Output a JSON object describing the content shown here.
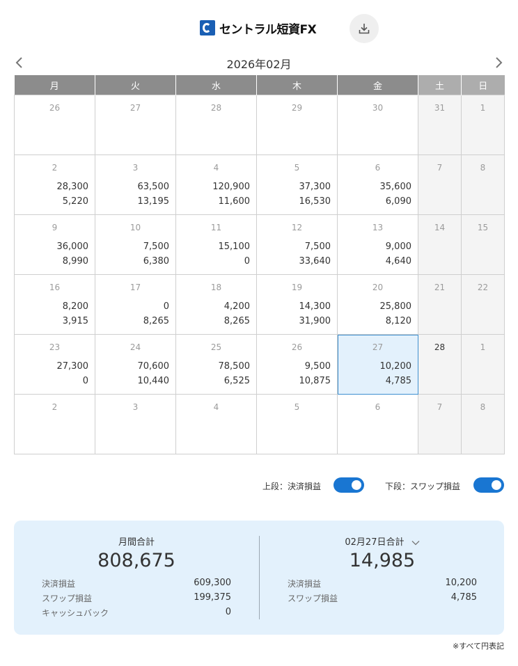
{
  "header": {
    "logo_text": "セントラル短資FX",
    "download_icon": "download-icon"
  },
  "nav": {
    "month_label": "2026年02月",
    "prev_icon": "chevron-left-icon",
    "next_icon": "chevron-right-icon"
  },
  "weekdays": [
    "月",
    "火",
    "水",
    "木",
    "金",
    "土",
    "日"
  ],
  "weeks": [
    [
      {
        "day": "26",
        "a": "",
        "b": ""
      },
      {
        "day": "27",
        "a": "",
        "b": ""
      },
      {
        "day": "28",
        "a": "",
        "b": ""
      },
      {
        "day": "29",
        "a": "",
        "b": ""
      },
      {
        "day": "30",
        "a": "",
        "b": ""
      },
      {
        "day": "31",
        "a": "",
        "b": ""
      },
      {
        "day": "1",
        "a": "",
        "b": ""
      }
    ],
    [
      {
        "day": "2",
        "a": "28,300",
        "b": "5,220"
      },
      {
        "day": "3",
        "a": "63,500",
        "b": "13,195"
      },
      {
        "day": "4",
        "a": "120,900",
        "b": "11,600"
      },
      {
        "day": "5",
        "a": "37,300",
        "b": "16,530"
      },
      {
        "day": "6",
        "a": "35,600",
        "b": "6,090"
      },
      {
        "day": "7",
        "a": "",
        "b": ""
      },
      {
        "day": "8",
        "a": "",
        "b": ""
      }
    ],
    [
      {
        "day": "9",
        "a": "36,000",
        "b": "8,990"
      },
      {
        "day": "10",
        "a": "7,500",
        "b": "6,380"
      },
      {
        "day": "11",
        "a": "15,100",
        "b": "0"
      },
      {
        "day": "12",
        "a": "7,500",
        "b": "33,640"
      },
      {
        "day": "13",
        "a": "9,000",
        "b": "4,640"
      },
      {
        "day": "14",
        "a": "",
        "b": ""
      },
      {
        "day": "15",
        "a": "",
        "b": ""
      }
    ],
    [
      {
        "day": "16",
        "a": "8,200",
        "b": "3,915"
      },
      {
        "day": "17",
        "a": "0",
        "b": "8,265"
      },
      {
        "day": "18",
        "a": "4,200",
        "b": "8,265"
      },
      {
        "day": "19",
        "a": "14,300",
        "b": "31,900"
      },
      {
        "day": "20",
        "a": "25,800",
        "b": "8,120"
      },
      {
        "day": "21",
        "a": "",
        "b": ""
      },
      {
        "day": "22",
        "a": "",
        "b": ""
      }
    ],
    [
      {
        "day": "23",
        "a": "27,300",
        "b": "0"
      },
      {
        "day": "24",
        "a": "70,600",
        "b": "10,440"
      },
      {
        "day": "25",
        "a": "78,500",
        "b": "6,525"
      },
      {
        "day": "26",
        "a": "9,500",
        "b": "10,875"
      },
      {
        "day": "27",
        "a": "10,200",
        "b": "4,785"
      },
      {
        "day": "28",
        "a": "",
        "b": ""
      },
      {
        "day": "1",
        "a": "",
        "b": ""
      }
    ],
    [
      {
        "day": "2",
        "a": "",
        "b": ""
      },
      {
        "day": "3",
        "a": "",
        "b": ""
      },
      {
        "day": "4",
        "a": "",
        "b": ""
      },
      {
        "day": "5",
        "a": "",
        "b": ""
      },
      {
        "day": "6",
        "a": "",
        "b": ""
      },
      {
        "day": "7",
        "a": "",
        "b": ""
      },
      {
        "day": "8",
        "a": "",
        "b": ""
      }
    ]
  ],
  "toggles": {
    "upper_label": "上段：決済損益",
    "lower_label": "下段：スワップ損益"
  },
  "summary": {
    "monthly_title": "月間合計",
    "monthly_total": "808,675",
    "monthly_rows": [
      {
        "label": "決済損益",
        "value": "609,300"
      },
      {
        "label": "スワップ損益",
        "value": "199,375"
      },
      {
        "label": "キャッシュバック",
        "value": "0"
      }
    ],
    "daily_title": "02月27日合計",
    "daily_total": "14,985",
    "daily_rows": [
      {
        "label": "決済損益",
        "value": "10,200"
      },
      {
        "label": "スワップ損益",
        "value": "4,785"
      }
    ]
  },
  "footer_note": "※すべて円表記",
  "colors": {
    "accent": "#1976d2",
    "header_bg": "#8c8c8c",
    "today_bg": "#e3f1fc",
    "summary_bg": "#e3f1fc"
  }
}
